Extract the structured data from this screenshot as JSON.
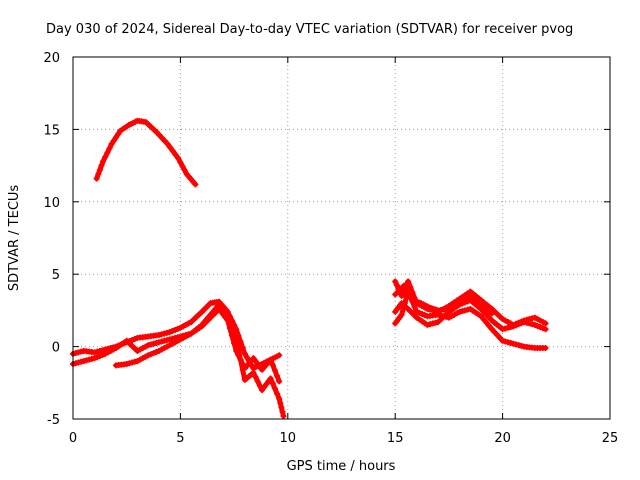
{
  "chart_data": {
    "type": "scatter",
    "title": "Day 030 of 2024, Sidereal Day-to-day VTEC variation (SDTVAR) for receiver pvog",
    "xlabel": "GPS time / hours",
    "ylabel": "SDTVAR / TECUs",
    "xlim": [
      0,
      25
    ],
    "ylim": [
      -5,
      20
    ],
    "xticks": [
      "0",
      "5",
      "10",
      "15",
      "20",
      "25"
    ],
    "yticks": [
      "-5",
      "0",
      "5",
      "10",
      "15",
      "20"
    ],
    "grid": true,
    "marker_color": "#ff0000",
    "series": [
      {
        "name": "arc-1",
        "x": [
          1.1,
          1.4,
          1.8,
          2.2,
          2.6,
          3.0,
          3.4,
          3.9,
          4.4,
          4.9,
          5.3,
          5.7
        ],
        "y": [
          11.6,
          12.8,
          14.0,
          14.9,
          15.3,
          15.6,
          15.5,
          14.8,
          14.0,
          13.0,
          11.9,
          11.2
        ]
      },
      {
        "name": "arc-2a",
        "x": [
          0.0,
          0.5,
          1.0,
          1.5,
          2.0,
          2.5,
          3.0,
          3.5,
          4.0,
          4.5,
          5.0,
          5.5,
          6.0,
          6.4,
          6.8,
          7.2,
          7.6,
          8.0,
          8.4,
          8.8,
          9.2,
          9.6
        ],
        "y": [
          -0.5,
          -0.3,
          -0.4,
          -0.2,
          0.0,
          0.3,
          0.6,
          0.7,
          0.8,
          1.0,
          1.3,
          1.7,
          2.4,
          3.0,
          3.1,
          2.4,
          1.2,
          -0.5,
          -1.5,
          -1.2,
          -0.9,
          -0.6
        ]
      },
      {
        "name": "arc-2b",
        "x": [
          0.0,
          0.5,
          1.0,
          1.5,
          2.0,
          2.5,
          3.0,
          3.5,
          4.0,
          4.5,
          5.0,
          5.5,
          6.0,
          6.4,
          6.8,
          7.2,
          7.6,
          8.0,
          8.4,
          8.8,
          9.2,
          9.6,
          9.8
        ],
        "y": [
          -1.2,
          -1.0,
          -0.8,
          -0.5,
          -0.1,
          0.4,
          -0.3,
          0.1,
          0.3,
          0.5,
          0.7,
          0.9,
          1.5,
          2.2,
          2.9,
          2.2,
          0.5,
          -2.3,
          -1.8,
          -3.0,
          -2.2,
          -3.6,
          -4.8
        ]
      },
      {
        "name": "arc-2c",
        "x": [
          2.0,
          2.5,
          3.0,
          3.5,
          4.0,
          4.5,
          5.0,
          5.5,
          6.0,
          6.4,
          6.8,
          7.2,
          7.6,
          8.0,
          8.4,
          8.8,
          9.2,
          9.6
        ],
        "y": [
          -1.3,
          -1.2,
          -1.0,
          -0.6,
          -0.3,
          0.1,
          0.5,
          0.9,
          1.4,
          2.0,
          2.6,
          1.8,
          -0.3,
          -1.5,
          -0.8,
          -1.6,
          -0.9,
          -2.4
        ]
      },
      {
        "name": "arc-3a",
        "x": [
          15.0,
          15.3,
          15.6,
          16.0,
          16.5,
          17.0,
          17.5,
          18.0,
          18.5,
          19.0,
          19.5,
          20.0,
          20.5,
          21.0,
          21.5,
          22.0
        ],
        "y": [
          4.5,
          3.5,
          4.5,
          3.0,
          2.6,
          2.4,
          2.8,
          3.3,
          3.8,
          3.2,
          2.6,
          1.9,
          1.5,
          1.8,
          2.0,
          1.6
        ]
      },
      {
        "name": "arc-3b",
        "x": [
          15.0,
          15.3,
          15.6,
          16.0,
          16.5,
          17.0,
          17.5,
          18.0,
          18.5,
          19.0,
          19.5,
          20.0,
          20.5,
          21.0,
          21.5,
          22.0
        ],
        "y": [
          2.4,
          3.0,
          2.6,
          2.0,
          1.5,
          1.7,
          2.4,
          2.9,
          3.2,
          2.6,
          1.8,
          1.2,
          1.4,
          1.7,
          1.5,
          1.2
        ]
      },
      {
        "name": "arc-3c",
        "x": [
          15.0,
          15.3,
          15.6,
          16.0,
          16.5,
          17.0,
          17.5,
          18.0,
          18.5,
          19.0,
          19.5,
          20.0,
          20.5,
          21.0,
          21.5,
          22.0
        ],
        "y": [
          1.6,
          2.2,
          3.8,
          2.4,
          2.1,
          2.2,
          2.0,
          2.4,
          2.6,
          2.1,
          1.2,
          0.4,
          0.2,
          0.0,
          -0.1,
          -0.1
        ]
      },
      {
        "name": "arc-3d",
        "x": [
          15.0,
          15.4,
          15.8,
          16.2,
          16.6,
          17.0,
          17.5,
          18.0,
          18.5,
          19.0,
          19.5
        ],
        "y": [
          3.6,
          4.2,
          3.2,
          3.0,
          2.7,
          2.5,
          2.6,
          3.0,
          3.5,
          3.0,
          2.3
        ]
      }
    ]
  }
}
